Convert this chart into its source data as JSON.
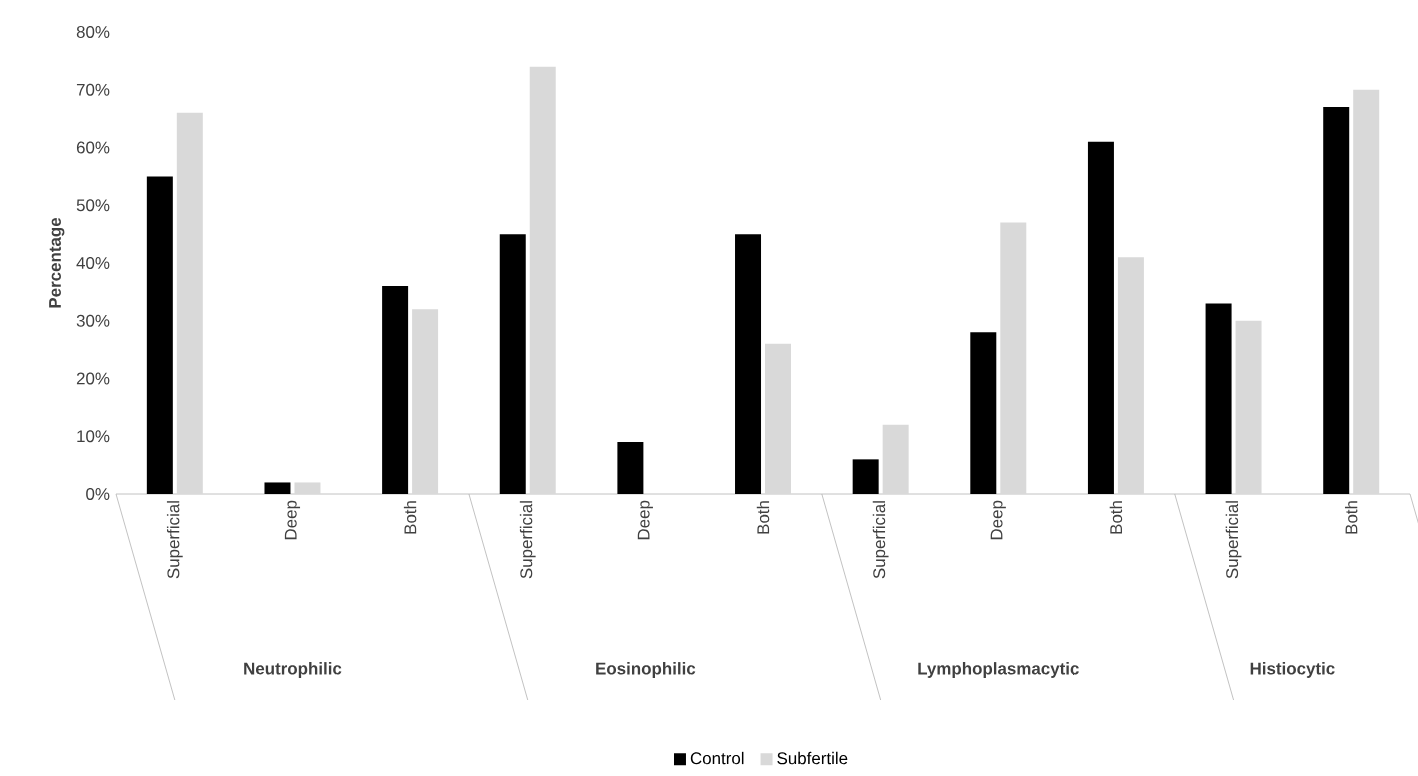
{
  "chart_data": {
    "type": "bar",
    "ylabel": "Percentage",
    "categories": [
      "Superficial",
      "Deep",
      "Both",
      "Superficial",
      "Deep",
      "Both",
      "Superficial",
      "Deep",
      "Both",
      "Superficial",
      "Both"
    ],
    "annotations": [
      "Neutrophilic",
      "Eosinophilic",
      "Lymphoplasmacytic",
      "Histiocytic"
    ],
    "series": [
      {
        "name": "Control",
        "color": "#000000",
        "values": [
          55,
          2,
          36,
          45,
          9,
          45,
          6,
          28,
          61,
          33,
          67
        ]
      },
      {
        "name": "Subfertile",
        "color": "#d9d9d9",
        "values": [
          66,
          2,
          32,
          74,
          0,
          26,
          12,
          47,
          41,
          30,
          70
        ]
      }
    ],
    "ylim": [
      0,
      80
    ],
    "yticks": [
      {
        "value": 0,
        "label": "0%"
      },
      {
        "value": 10,
        "label": "10%"
      },
      {
        "value": 20,
        "label": "20%"
      },
      {
        "value": 30,
        "label": "30%"
      },
      {
        "value": 40,
        "label": "40%"
      },
      {
        "value": 50,
        "label": "50%"
      },
      {
        "value": 60,
        "label": "60%"
      },
      {
        "value": 70,
        "label": "70%"
      },
      {
        "value": 80,
        "label": "80%"
      }
    ],
    "legend": "bottom"
  }
}
